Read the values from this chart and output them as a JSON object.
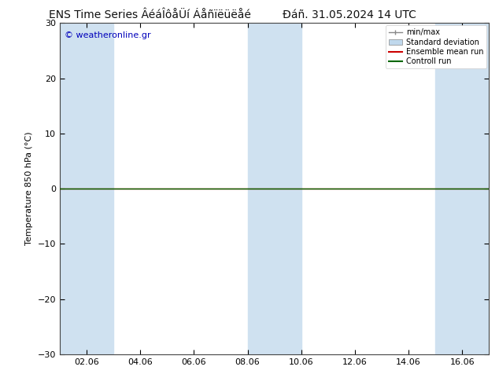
{
  "title_left": "ENS Time Series ÂéáÎôåÜí Áåñïëüëåé",
  "title_right": "Đáñ. 31.05.2024 14 UTC",
  "ylabel": "Temperature 850 hPa (°C)",
  "watermark": "© weatheronline.gr",
  "ylim": [
    -30,
    30
  ],
  "yticks": [
    -30,
    -20,
    -10,
    0,
    10,
    20,
    30
  ],
  "xlim_start": 0.0,
  "xlim_end": 16.0,
  "xtick_labels": [
    "02.06",
    "04.06",
    "06.06",
    "08.06",
    "10.06",
    "12.06",
    "14.06",
    "16.06"
  ],
  "xtick_positions": [
    1,
    3,
    5,
    7,
    9,
    11,
    13,
    15
  ],
  "shaded_bands": [
    {
      "x_start": 0.0,
      "x_end": 2.0
    },
    {
      "x_start": 7.0,
      "x_end": 9.0
    },
    {
      "x_start": 14.0,
      "x_end": 16.0
    }
  ],
  "band_color": "#cfe1f0",
  "ensemble_mean_color": "#cc0000",
  "control_run_color": "#006600",
  "minmax_color": "#888888",
  "std_dev_color": "#c0d8ec",
  "background_color": "#ffffff",
  "legend_labels": [
    "min/max",
    "Standard deviation",
    "Ensemble mean run",
    "Controll run"
  ],
  "title_fontsize": 10,
  "tick_fontsize": 8,
  "ylabel_fontsize": 8,
  "watermark_color": "#0000bb",
  "watermark_fontsize": 8
}
